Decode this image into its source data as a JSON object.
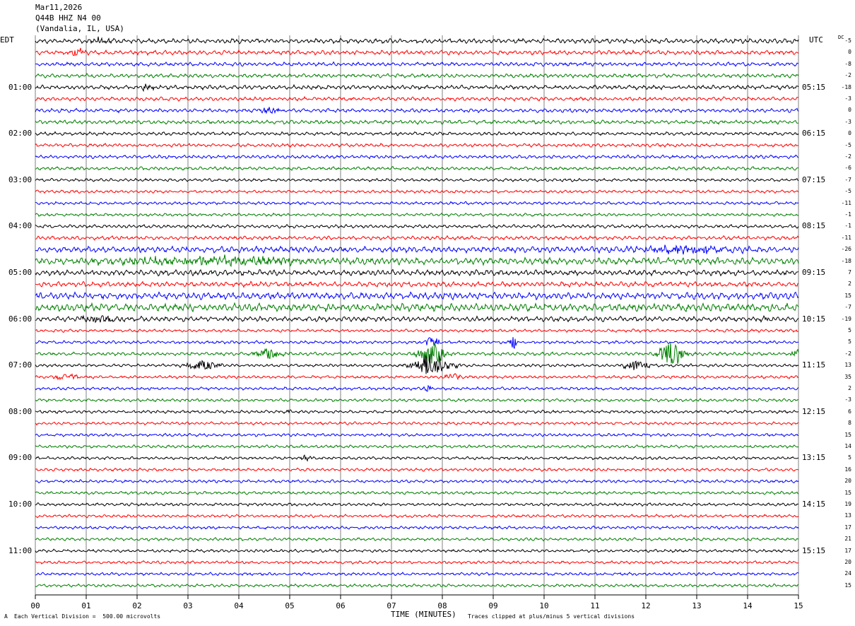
{
  "header": {
    "date": "Mar11,2026",
    "station": "Q44B HHZ N4 00",
    "location": "(Vandalia, IL, USA)"
  },
  "left_zone_label": "EDT",
  "right_zone_label": "UTC",
  "dc_label": "DC",
  "footer": {
    "scale_note": "Each Vertical Division =  500.00 microvolts",
    "clip_note": "Traces clipped at plus/minus 5 vertical divisions",
    "corner_mark": "A"
  },
  "chart_data": {
    "type": "line",
    "title": "Q44B HHZ N4 00",
    "xlabel": "TIME (MINUTES)",
    "x_ticks": [
      "00",
      "01",
      "02",
      "03",
      "04",
      "05",
      "06",
      "07",
      "08",
      "09",
      "10",
      "11",
      "12",
      "13",
      "14",
      "15"
    ],
    "xlim": [
      0,
      15
    ],
    "grid": true,
    "trace_colors": [
      "#000000",
      "#ff0000",
      "#0000ff",
      "#007f00"
    ],
    "left_time_labels": [
      "01:00",
      "02:00",
      "03:00",
      "04:00",
      "05:00",
      "06:00",
      "07:00",
      "08:00",
      "09:00",
      "10:00",
      "11:00"
    ],
    "right_time_labels": [
      "05:15",
      "06:15",
      "07:15",
      "08:15",
      "09:15",
      "10:15",
      "11:15",
      "12:15",
      "13:15",
      "14:15",
      "15:15"
    ],
    "hour_label_rows": [
      4,
      8,
      12,
      16,
      20,
      24,
      28,
      32,
      36,
      40,
      44
    ],
    "dc_offsets": [
      "-5",
      "0",
      "-8",
      "-2",
      "-18",
      "-3",
      "0",
      "-3",
      "0",
      "-5",
      "-2",
      "-6",
      "-7",
      "-5",
      "-11",
      "-1",
      "-1",
      "-11",
      "-26",
      "-18",
      "7",
      "2",
      "15",
      "-7",
      "-19",
      "5",
      "5",
      "-2",
      "13",
      "35",
      "2",
      "-3",
      "6",
      "8",
      "15",
      "14",
      "5",
      "16",
      "20",
      "15",
      "19",
      "13",
      "17",
      "21",
      "17",
      "20",
      "24",
      "15"
    ],
    "trace_count": 48,
    "noise_level": [
      1.1,
      1.0,
      0.9,
      0.9,
      1.0,
      0.9,
      0.9,
      0.9,
      0.8,
      0.8,
      0.8,
      0.8,
      0.7,
      0.7,
      0.7,
      0.7,
      0.8,
      0.9,
      1.4,
      1.6,
      1.3,
      1.2,
      1.6,
      1.8,
      1.2,
      0.7,
      0.7,
      0.8,
      0.7,
      0.7,
      0.7,
      0.7,
      0.7,
      0.7,
      0.7,
      0.7,
      0.7,
      0.7,
      0.7,
      0.7,
      0.7,
      0.7,
      0.7,
      0.7,
      0.7,
      0.7,
      0.7,
      0.7
    ],
    "events": [
      {
        "trace": 0,
        "minute": 1.3,
        "amp": 2.0,
        "dur": 0.25
      },
      {
        "trace": 1,
        "minute": 0.8,
        "amp": 1.5,
        "dur": 0.3
      },
      {
        "trace": 4,
        "minute": 2.2,
        "amp": 1.3,
        "dur": 0.2
      },
      {
        "trace": 6,
        "minute": 4.6,
        "amp": 1.2,
        "dur": 0.3
      },
      {
        "trace": 18,
        "minute": 12.8,
        "amp": 1.5,
        "dur": 1.5
      },
      {
        "trace": 19,
        "minute": 3.5,
        "amp": 1.5,
        "dur": 3.0
      },
      {
        "trace": 24,
        "minute": 1.2,
        "amp": 1.5,
        "dur": 0.6
      },
      {
        "trace": 24,
        "minute": 14.4,
        "amp": 1.2,
        "dur": 0.2
      },
      {
        "trace": 26,
        "minute": 9.4,
        "amp": 3.5,
        "dur": 0.08
      },
      {
        "trace": 26,
        "minute": 7.8,
        "amp": 2.5,
        "dur": 0.2
      },
      {
        "trace": 27,
        "minute": 4.6,
        "amp": 2.5,
        "dur": 0.35
      },
      {
        "trace": 27,
        "minute": 7.8,
        "amp": 4.5,
        "dur": 0.35
      },
      {
        "trace": 27,
        "minute": 12.5,
        "amp": 5.0,
        "dur": 0.35
      },
      {
        "trace": 27,
        "minute": 14.95,
        "amp": 3.0,
        "dur": 0.1
      },
      {
        "trace": 28,
        "minute": 3.3,
        "amp": 2.0,
        "dur": 0.45
      },
      {
        "trace": 28,
        "minute": 7.8,
        "amp": 5.0,
        "dur": 0.5
      },
      {
        "trace": 28,
        "minute": 11.8,
        "amp": 2.0,
        "dur": 0.35
      },
      {
        "trace": 29,
        "minute": 0.6,
        "amp": 1.8,
        "dur": 0.3
      },
      {
        "trace": 29,
        "minute": 8.2,
        "amp": 1.5,
        "dur": 0.2
      },
      {
        "trace": 30,
        "minute": 7.7,
        "amp": 2.2,
        "dur": 0.1
      },
      {
        "trace": 32,
        "minute": 5.0,
        "amp": 1.0,
        "dur": 0.1
      },
      {
        "trace": 36,
        "minute": 5.3,
        "amp": 1.0,
        "dur": 0.2
      }
    ]
  }
}
